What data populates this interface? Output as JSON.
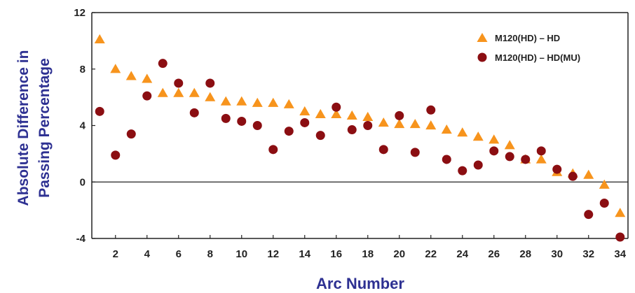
{
  "chart_data": {
    "type": "scatter",
    "title": "",
    "xlabel": "Arc Number",
    "ylabel": [
      "Absolute Difference in",
      "Passing Percentage"
    ],
    "xlim": [
      0.5,
      34.5
    ],
    "ylim": [
      -4,
      12
    ],
    "x_ticks": [
      2,
      4,
      6,
      8,
      10,
      12,
      14,
      16,
      18,
      20,
      22,
      24,
      26,
      28,
      30,
      32,
      34
    ],
    "y_ticks": [
      -4,
      0,
      4,
      8,
      12
    ],
    "zero_line": true,
    "grid": false,
    "legend_position": "top-right",
    "x": [
      1,
      2,
      3,
      4,
      5,
      6,
      7,
      8,
      9,
      10,
      11,
      12,
      13,
      14,
      15,
      16,
      17,
      18,
      19,
      20,
      21,
      22,
      23,
      24,
      25,
      26,
      27,
      28,
      29,
      30,
      31,
      32,
      33,
      34
    ],
    "series": [
      {
        "name": "M120(HD) – HD",
        "marker": "triangle",
        "color": "#F7941D",
        "values": [
          10.1,
          8.0,
          7.5,
          7.3,
          6.3,
          6.3,
          6.3,
          6.0,
          5.7,
          5.7,
          5.6,
          5.6,
          5.5,
          5.0,
          4.8,
          4.8,
          4.7,
          4.6,
          4.2,
          4.1,
          4.1,
          4.0,
          3.7,
          3.5,
          3.2,
          3.0,
          2.6,
          1.6,
          1.6,
          0.7,
          0.6,
          0.5,
          -0.2,
          -2.2
        ]
      },
      {
        "name": "M120(HD) – HD(MU)",
        "marker": "circle",
        "color": "#8B0E12",
        "values": [
          5.0,
          1.9,
          3.4,
          6.1,
          8.4,
          7.0,
          4.9,
          7.0,
          4.5,
          4.3,
          4.0,
          2.3,
          3.6,
          4.2,
          3.3,
          5.3,
          3.7,
          4.0,
          2.3,
          4.7,
          2.1,
          5.1,
          1.6,
          0.8,
          1.2,
          2.2,
          1.8,
          1.6,
          2.2,
          0.9,
          0.4,
          -2.3,
          -1.5,
          -3.9
        ]
      }
    ]
  }
}
